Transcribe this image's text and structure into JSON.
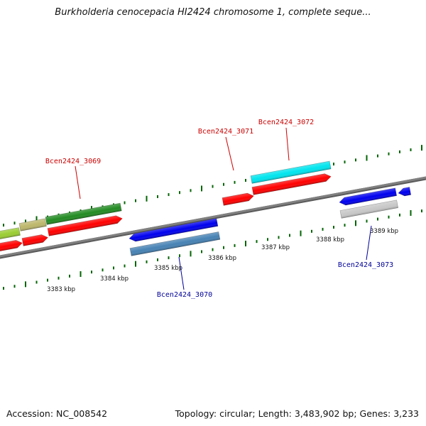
{
  "title": "Burkholderia cenocepacia HI2424 chromosome 1, complete seque...",
  "footer": {
    "accession": "Accession: NC_008542",
    "summary": "Topology: circular; Length: 3,483,902 bp; Genes: 3,233"
  },
  "scale_labels": [
    "3383 kbp",
    "3384 kbp",
    "3385 kbp",
    "3386 kbp",
    "3387 kbp",
    "3388 kbp",
    "3389 kbp"
  ],
  "gene_labels": [
    {
      "text": "Bcen2424_3069",
      "color": "#cc0000",
      "strand": "forward"
    },
    {
      "text": "Bcen2424_3070",
      "color": "#000099",
      "strand": "reverse"
    },
    {
      "text": "Bcen2424_3071",
      "color": "#cc0000",
      "strand": "forward"
    },
    {
      "text": "Bcen2424_3072",
      "color": "#cc0000",
      "strand": "forward"
    },
    {
      "text": "Bcen2424_3073",
      "color": "#000099",
      "strand": "reverse"
    }
  ],
  "colors": {
    "backbone": "#808080",
    "forward_gene": "#ff0000",
    "reverse_gene": "#0000ee",
    "highlight_cyan": "#00e5ee",
    "feature_green": "#228b22",
    "feature_steelblue": "#4682b4",
    "feature_lightgray": "#c8c8c8",
    "feature_yellowgreen": "#9acd32",
    "feature_khaki": "#bdb76b",
    "tick": "#006400"
  }
}
